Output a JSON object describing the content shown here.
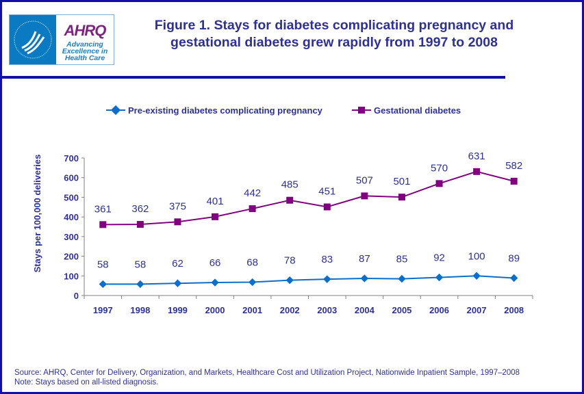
{
  "header": {
    "logo_text": "AHRQ",
    "logo_tagline": "Advancing Excellence in Health Care",
    "logo_seal_text": "DEPARTMENT OF HEALTH & HUMAN SERVICES USA",
    "title_line1": "Figure 1. Stays for diabetes complicating pregnancy and",
    "title_line2": "gestational diabetes grew rapidly from 1997 to 2008"
  },
  "chart_data": {
    "type": "line",
    "title": "",
    "xlabel": "",
    "ylabel": "Stays per 100,000 deliveries",
    "ylim": [
      0,
      700
    ],
    "yticks": [
      "0",
      "100",
      "200",
      "300",
      "400",
      "500",
      "600",
      "700"
    ],
    "grid": false,
    "legend_position": "top",
    "categories": [
      "1997",
      "1998",
      "1999",
      "2000",
      "2001",
      "2002",
      "2003",
      "2004",
      "2005",
      "2006",
      "2007",
      "2008"
    ],
    "series": [
      {
        "name": "Pre-existing diabetes complicating pregnancy",
        "color": "#0a6fcc",
        "marker": "diamond",
        "values": [
          58,
          58,
          62,
          66,
          68,
          78,
          83,
          87,
          85,
          92,
          100,
          89
        ]
      },
      {
        "name": "Gestational diabetes",
        "color": "#800080",
        "marker": "square",
        "values": [
          361,
          362,
          375,
          401,
          442,
          485,
          451,
          507,
          501,
          570,
          631,
          582
        ]
      }
    ]
  },
  "footer": {
    "source": "Source: AHRQ, Center for Delivery, Organization, and Markets, Healthcare Cost and Utilization Project, Nationwide Inpatient Sample, 1997–2008",
    "note": "Note: Stays based on all-listed diagnosis."
  }
}
